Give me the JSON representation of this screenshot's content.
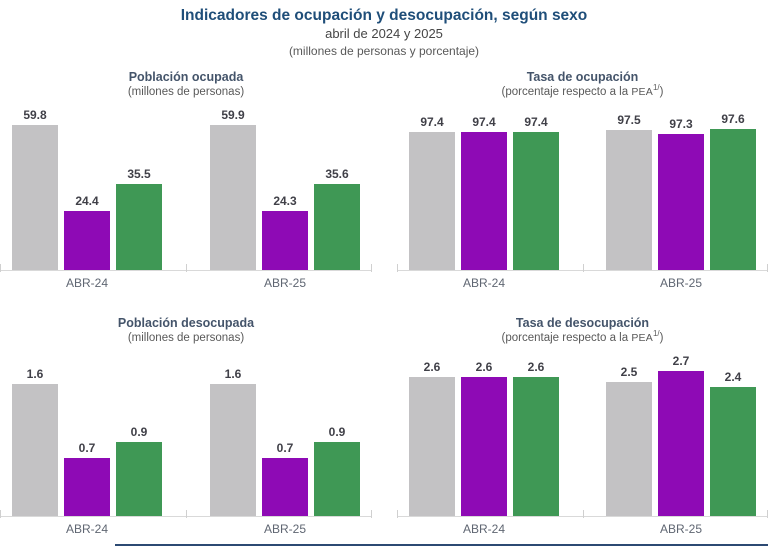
{
  "title": "Indicadores de ocupación y desocupación, según sexo",
  "subtitle": "abril de 2024 y 2025",
  "subtitle2": "(millones de personas y porcentaje)",
  "colors": {
    "gray": "#c3c2c4",
    "purple": "#8e0ab5",
    "green": "#3f9855",
    "title_navy": "#1f4e79",
    "panel_title": "#44546a",
    "axis": "#d9d9d9",
    "footer_line": "#2c4a73"
  },
  "chart_data": [
    {
      "id": "poblacion-ocupada",
      "type": "bar",
      "title": "Población ocupada",
      "subtitle_prefix": "(millones de personas)",
      "subtitle_pea": "",
      "subtitle_sup": "",
      "subtitle_suffix": "",
      "categories": [
        "ABR-24",
        "ABR-25"
      ],
      "series": [
        {
          "name": "gray",
          "values": [
            59.8,
            59.9
          ]
        },
        {
          "name": "purple",
          "values": [
            24.4,
            24.3
          ]
        },
        {
          "name": "green",
          "values": [
            35.5,
            35.6
          ]
        }
      ],
      "ylim": [
        0,
        61
      ],
      "grid": false,
      "legend": false
    },
    {
      "id": "tasa-de-ocupacion",
      "type": "bar",
      "title": "Tasa de ocupación",
      "subtitle_prefix": "(porcentaje respecto a la ",
      "subtitle_pea": "PEA",
      "subtitle_sup": "1/",
      "subtitle_suffix": ")",
      "categories": [
        "ABR-24",
        "ABR-25"
      ],
      "series": [
        {
          "name": "gray",
          "values": [
            97.4,
            97.5
          ]
        },
        {
          "name": "purple",
          "values": [
            97.4,
            97.3
          ]
        },
        {
          "name": "green",
          "values": [
            97.4,
            97.6
          ]
        }
      ],
      "ylim": [
        89,
        98
      ],
      "grid": false,
      "legend": false
    },
    {
      "id": "poblacion-desocupada",
      "type": "bar",
      "title": "Población desocupada",
      "subtitle_prefix": "(millones de personas)",
      "subtitle_pea": "",
      "subtitle_sup": "",
      "subtitle_suffix": "",
      "categories": [
        "ABR-24",
        "ABR-25"
      ],
      "series": [
        {
          "name": "gray",
          "values": [
            1.6,
            1.6
          ]
        },
        {
          "name": "purple",
          "values": [
            0.7,
            0.7
          ]
        },
        {
          "name": "green",
          "values": [
            0.9,
            0.9
          ]
        }
      ],
      "ylim": [
        0,
        1.8
      ],
      "grid": false,
      "legend": false
    },
    {
      "id": "tasa-de-desocupacion",
      "type": "bar",
      "title": "Tasa de desocupación",
      "subtitle_prefix": "(porcentaje respecto a la ",
      "subtitle_pea": "PEA",
      "subtitle_sup": "1/",
      "subtitle_suffix": ")",
      "categories": [
        "ABR-24",
        "ABR-25"
      ],
      "series": [
        {
          "name": "gray",
          "values": [
            2.6,
            2.5
          ]
        },
        {
          "name": "purple",
          "values": [
            2.6,
            2.7
          ]
        },
        {
          "name": "green",
          "values": [
            2.6,
            2.4
          ]
        }
      ],
      "ylim": [
        0,
        2.76
      ],
      "grid": false,
      "legend": false
    }
  ]
}
